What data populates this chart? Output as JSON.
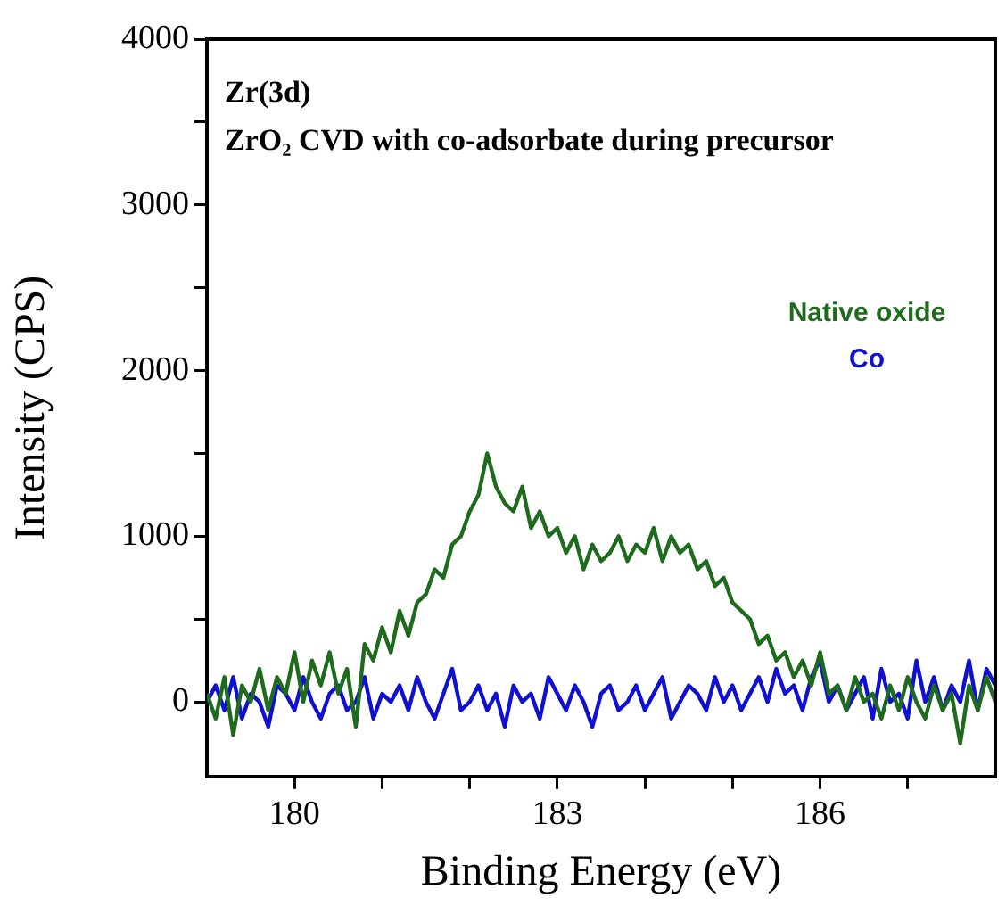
{
  "chart_data": {
    "type": "line",
    "title": "Zr(3d)",
    "subtitle": "ZrO₂ CVD with co-adsorbate during precursor",
    "xlabel": "Binding Energy (eV)",
    "ylabel": "Intensity (CPS)",
    "x": [
      179.0,
      179.1,
      179.2,
      179.3,
      179.4,
      179.5,
      179.6,
      179.7,
      179.8,
      179.9,
      180.0,
      180.1,
      180.2,
      180.3,
      180.4,
      180.5,
      180.6,
      180.7,
      180.8,
      180.9,
      181.0,
      181.1,
      181.2,
      181.3,
      181.4,
      181.5,
      181.6,
      181.7,
      181.8,
      181.9,
      182.0,
      182.1,
      182.2,
      182.3,
      182.4,
      182.5,
      182.6,
      182.7,
      182.8,
      182.9,
      183.0,
      183.1,
      183.2,
      183.3,
      183.4,
      183.5,
      183.6,
      183.7,
      183.8,
      183.9,
      184.0,
      184.1,
      184.2,
      184.3,
      184.4,
      184.5,
      184.6,
      184.7,
      184.8,
      184.9,
      185.0,
      185.1,
      185.2,
      185.3,
      185.4,
      185.5,
      185.6,
      185.7,
      185.8,
      185.9,
      186.0,
      186.1,
      186.2,
      186.3,
      186.4,
      186.5,
      186.6,
      186.7,
      186.8,
      186.9,
      187.0,
      187.1,
      187.2,
      187.3,
      187.4,
      187.5,
      187.6,
      187.7,
      187.8,
      187.9,
      188.0
    ],
    "series": [
      {
        "name": "Native oxide",
        "color": "#1e6b1e",
        "values": [
          50,
          -100,
          150,
          -200,
          100,
          0,
          200,
          -50,
          150,
          50,
          300,
          0,
          250,
          100,
          300,
          50,
          200,
          -150,
          350,
          250,
          450,
          300,
          550,
          400,
          600,
          650,
          800,
          750,
          950,
          1000,
          1150,
          1250,
          1500,
          1300,
          1200,
          1150,
          1300,
          1050,
          1150,
          1000,
          1050,
          900,
          1000,
          800,
          950,
          850,
          900,
          1000,
          850,
          950,
          900,
          1050,
          850,
          1000,
          900,
          950,
          800,
          850,
          700,
          750,
          600,
          550,
          500,
          350,
          400,
          250,
          300,
          150,
          250,
          100,
          300,
          50,
          100,
          -50,
          150,
          0,
          50,
          -100,
          100,
          -50,
          150,
          0,
          -100,
          100,
          -50,
          50,
          -250,
          100,
          -50,
          150,
          0
        ]
      },
      {
        "name": "Co",
        "color": "#1010d0",
        "values": [
          0,
          100,
          -50,
          150,
          -100,
          50,
          0,
          -150,
          100,
          50,
          -50,
          150,
          0,
          -100,
          50,
          100,
          -50,
          0,
          150,
          -100,
          50,
          0,
          100,
          -50,
          150,
          0,
          -100,
          50,
          200,
          -50,
          0,
          100,
          -50,
          50,
          -150,
          100,
          0,
          50,
          -100,
          150,
          50,
          -50,
          100,
          0,
          -150,
          50,
          100,
          -50,
          0,
          100,
          -50,
          50,
          150,
          -100,
          0,
          100,
          50,
          -50,
          150,
          0,
          100,
          -50,
          50,
          150,
          0,
          200,
          50,
          100,
          -50,
          150,
          250,
          0,
          100,
          -50,
          50,
          150,
          -100,
          200,
          0,
          50,
          -100,
          250,
          0,
          150,
          -50,
          100,
          0,
          250,
          -50,
          200,
          100
        ]
      }
    ],
    "xlim": [
      179,
      188
    ],
    "xticks": [
      180,
      {
        "value": 181,
        "label": null
      },
      {
        "value": 182,
        "label": null
      },
      183,
      {
        "value": 184,
        "label": null
      },
      {
        "value": 185,
        "label": null
      },
      186,
      {
        "value": 187,
        "label": null
      }
    ],
    "ylim": [
      -450,
      4000
    ],
    "yticks": [
      0,
      {
        "value": 500,
        "label": null
      },
      1000,
      {
        "value": 1500,
        "label": null
      },
      2000,
      {
        "value": 2500,
        "label": null
      },
      3000,
      {
        "value": 3500,
        "label": null
      },
      4000
    ],
    "grid": false,
    "legend": "right",
    "marker": "none",
    "line_style": "solid"
  }
}
